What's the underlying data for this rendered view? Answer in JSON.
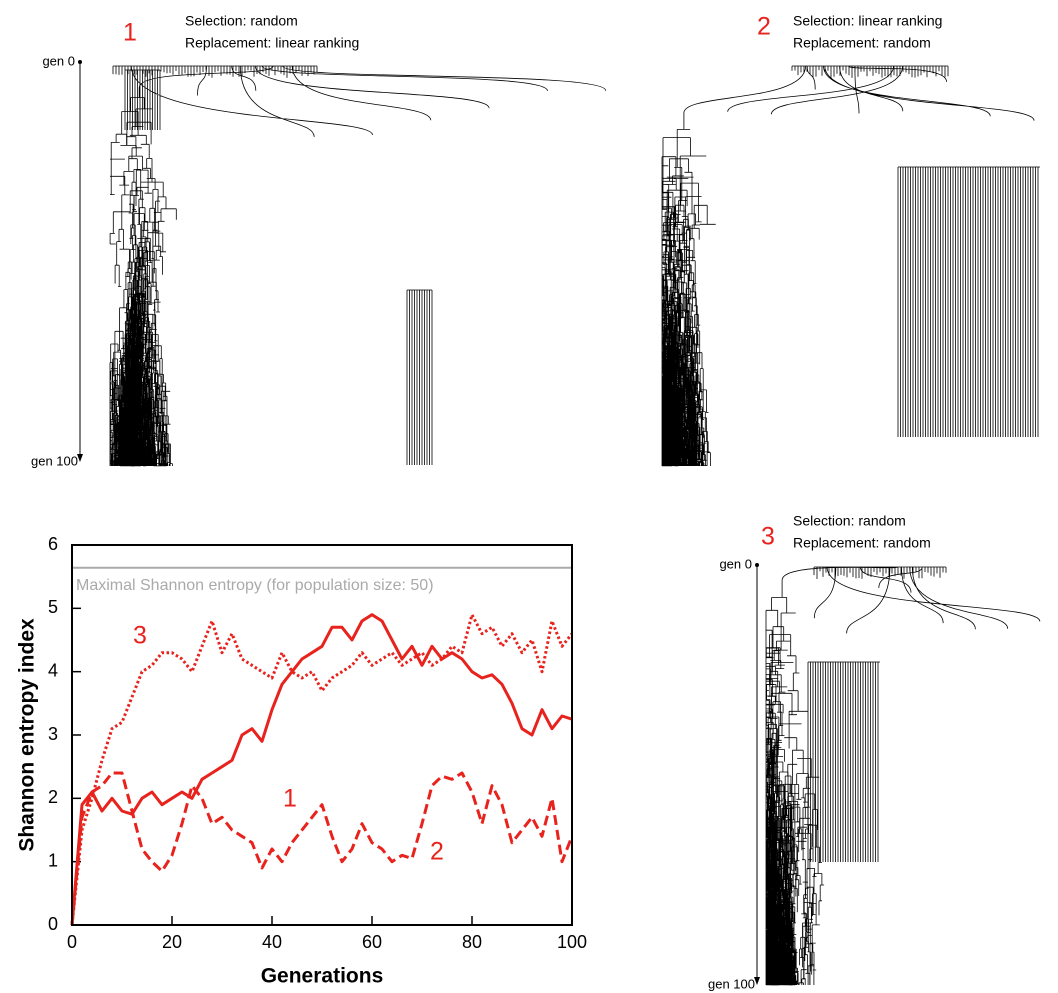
{
  "trees": [
    {
      "number": "1",
      "selection": "Selection: random",
      "replacement": "Replacement: linear ranking",
      "axis_top": "gen 0",
      "axis_bottom": "gen 100"
    },
    {
      "number": "2",
      "selection": "Selection: linear ranking",
      "replacement": "Replacement: random"
    },
    {
      "number": "3",
      "selection": "Selection: random",
      "replacement": "Replacement: random",
      "axis_top": "gen 0",
      "axis_bottom": "gen 100"
    }
  ],
  "chart_data": {
    "type": "line",
    "x_label": "Generations",
    "y_label": "Shannon entropy index",
    "xlim": [
      0,
      100
    ],
    "xticks": [
      0,
      20,
      40,
      60,
      80,
      100
    ],
    "ylim": [
      0,
      6
    ],
    "yticks": [
      0,
      1,
      2,
      3,
      4,
      5,
      6
    ],
    "reference_line": {
      "value": 5.64,
      "label": "Maximal Shannon entropy (for population size: 50)",
      "color": "#aaaaaa"
    },
    "x": [
      0,
      2,
      4,
      6,
      8,
      10,
      12,
      14,
      16,
      18,
      20,
      22,
      24,
      26,
      28,
      30,
      32,
      34,
      36,
      38,
      40,
      42,
      44,
      46,
      48,
      50,
      52,
      54,
      56,
      58,
      60,
      62,
      64,
      66,
      68,
      70,
      72,
      74,
      76,
      78,
      80,
      82,
      84,
      86,
      88,
      90,
      92,
      94,
      96,
      98,
      100
    ],
    "series": [
      {
        "name": "1",
        "color": "#e8221c",
        "dash": "solid",
        "values": [
          0,
          1.9,
          2.1,
          1.8,
          2.0,
          1.8,
          1.75,
          2.0,
          2.1,
          1.9,
          2.0,
          2.1,
          2.0,
          2.3,
          2.4,
          2.5,
          2.6,
          3.0,
          3.1,
          2.9,
          3.4,
          3.8,
          4.0,
          4.2,
          4.3,
          4.4,
          4.7,
          4.7,
          4.5,
          4.8,
          4.9,
          4.8,
          4.5,
          4.2,
          4.4,
          4.1,
          4.4,
          4.2,
          4.3,
          4.2,
          4.0,
          3.9,
          3.95,
          3.8,
          3.5,
          3.1,
          3.0,
          3.4,
          3.1,
          3.3,
          3.25
        ]
      },
      {
        "name": "2",
        "color": "#e8221c",
        "dash": "dashed",
        "values": [
          0,
          1.7,
          2.1,
          2.2,
          2.4,
          2.4,
          1.8,
          1.2,
          1.0,
          0.85,
          1.1,
          1.6,
          2.2,
          2.0,
          1.6,
          1.7,
          1.5,
          1.4,
          1.3,
          0.9,
          1.2,
          1.0,
          1.3,
          1.5,
          1.7,
          1.9,
          1.4,
          1.0,
          1.2,
          1.6,
          1.3,
          1.2,
          1.0,
          1.1,
          1.05,
          1.6,
          2.2,
          2.35,
          2.3,
          2.4,
          2.1,
          1.6,
          2.2,
          1.9,
          1.3,
          1.5,
          1.7,
          1.4,
          2.0,
          1.0,
          1.4
        ]
      },
      {
        "name": "3",
        "color": "#e8221c",
        "dash": "dotted",
        "values": [
          0,
          1.5,
          2.0,
          2.6,
          3.1,
          3.2,
          3.6,
          4.0,
          4.1,
          4.3,
          4.3,
          4.2,
          4.0,
          4.4,
          4.8,
          4.3,
          4.6,
          4.2,
          4.1,
          4.0,
          3.9,
          4.3,
          4.0,
          3.9,
          4.0,
          3.7,
          3.9,
          4.0,
          4.1,
          4.3,
          4.1,
          4.2,
          4.3,
          4.1,
          4.2,
          4.3,
          4.1,
          4.2,
          4.4,
          4.3,
          4.9,
          4.6,
          4.7,
          4.4,
          4.6,
          4.3,
          4.5,
          4.0,
          4.8,
          4.4,
          4.6
        ]
      }
    ]
  }
}
